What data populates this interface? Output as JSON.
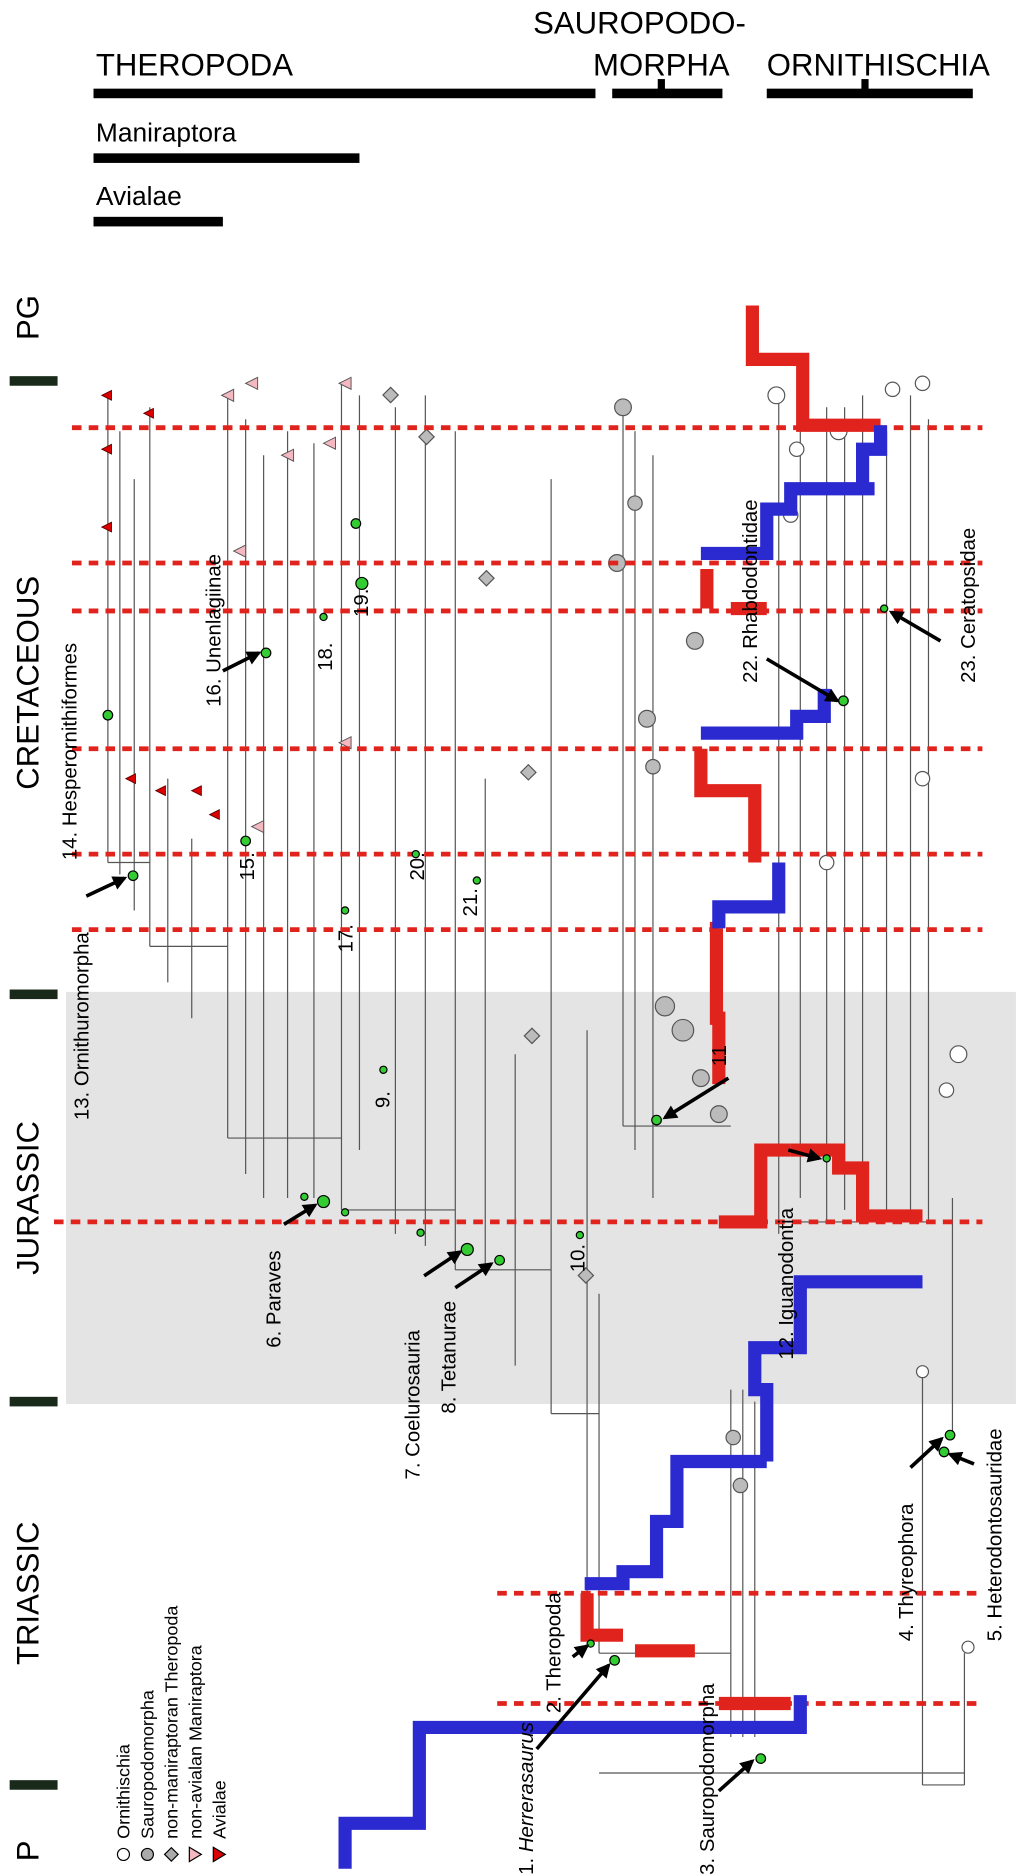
{
  "header": {
    "clades": [
      {
        "label": "THEROPODA"
      },
      {
        "label": "SAUROPODO-"
      },
      {
        "label": "MORPHA"
      },
      {
        "label": "ORNITHISCHIA"
      },
      {
        "label": "Maniraptora"
      },
      {
        "label": "Avialae"
      }
    ]
  },
  "periods": [
    {
      "label": "PG"
    },
    {
      "label": "CRETACEOUS"
    },
    {
      "label": "JURASSIC"
    },
    {
      "label": "TRIASSIC"
    },
    {
      "label": "P"
    }
  ],
  "legend": {
    "items": [
      {
        "label": "Ornithischia"
      },
      {
        "label": "Sauropodomorpha"
      },
      {
        "label": "non-maniraptoran Theropoda"
      },
      {
        "label": "non-avialan Maniraptora"
      },
      {
        "label": "Avialae"
      }
    ]
  },
  "nodes": [
    {
      "number": "1.",
      "name": "Herrerasaurus"
    },
    {
      "label": "2. Theropoda"
    },
    {
      "label": "3. Sauropodomorpha"
    },
    {
      "label": "4. Thyreophora"
    },
    {
      "label": "5. Heterodontosauridae"
    },
    {
      "label": "6. Paraves"
    },
    {
      "label": "7. Coelurosauria"
    },
    {
      "label": "8. Tetanurae"
    },
    {
      "label": "9."
    },
    {
      "label": "10."
    },
    {
      "label": "11"
    },
    {
      "label": "12. Iguanodontia"
    },
    {
      "label": "13. Ornithuromorpha"
    },
    {
      "label": "14. Hesperornithiformes"
    },
    {
      "label": "15."
    },
    {
      "label": "16. Unenlagiinae"
    },
    {
      "label": "17."
    },
    {
      "label": "18."
    },
    {
      "label": "19."
    },
    {
      "label": "20."
    },
    {
      "label": "21."
    },
    {
      "label": "22. Rhabdodontidae"
    },
    {
      "label": "23. Ceratopsidae"
    }
  ]
}
